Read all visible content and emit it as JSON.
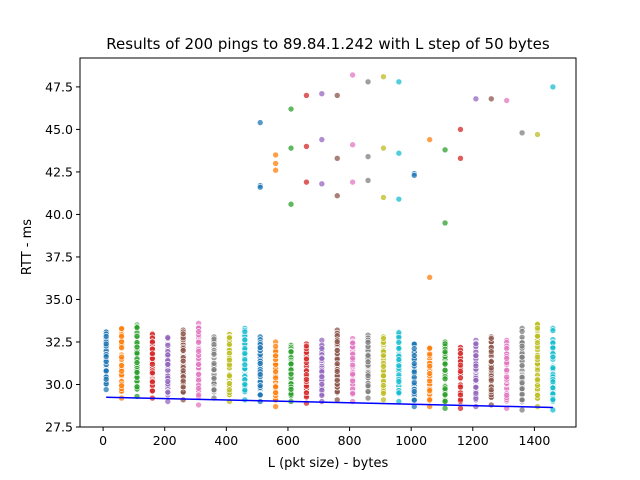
{
  "chart_data": {
    "type": "scatter",
    "title": "Results of 200 pings to 89.84.1.242 with L step of 50 bytes",
    "xlabel": "L (pkt size) - bytes",
    "ylabel": "RTT - ms",
    "xlim": [
      -75,
      1535
    ],
    "ylim": [
      27.5,
      49.2
    ],
    "xticks": [
      0,
      200,
      400,
      600,
      800,
      1000,
      1200,
      1400
    ],
    "yticks": [
      27.5,
      30.0,
      32.5,
      35.0,
      37.5,
      40.0,
      42.5,
      45.0,
      47.5
    ],
    "ytick_labels": [
      "27.5",
      "30.0",
      "32.5",
      "35.0",
      "37.5",
      "40.0",
      "42.5",
      "45.0",
      "47.5"
    ],
    "grid": false,
    "legend": "none",
    "palette": [
      "#1f77b4",
      "#ff7f0e",
      "#2ca02c",
      "#d62728",
      "#9467bd",
      "#8c564b",
      "#e377c2",
      "#7f7f7f",
      "#bcbd22",
      "#17becf"
    ],
    "fit_line": {
      "color": "#0000ff",
      "x": [
        10,
        1460
      ],
      "y": [
        29.25,
        28.65
      ]
    },
    "series": [
      {
        "x": 10,
        "main": [
          29.7,
          33.1
        ],
        "outliers": []
      },
      {
        "x": 60,
        "main": [
          29.2,
          33.3
        ],
        "outliers": []
      },
      {
        "x": 110,
        "main": [
          29.3,
          33.5
        ],
        "outliers": []
      },
      {
        "x": 160,
        "main": [
          29.2,
          33.0
        ],
        "outliers": []
      },
      {
        "x": 210,
        "main": [
          29.0,
          32.8
        ],
        "outliers": []
      },
      {
        "x": 260,
        "main": [
          29.1,
          33.2
        ],
        "outliers": []
      },
      {
        "x": 310,
        "main": [
          28.8,
          33.6
        ],
        "outliers": []
      },
      {
        "x": 360,
        "main": [
          29.2,
          32.8
        ],
        "outliers": []
      },
      {
        "x": 410,
        "main": [
          29.0,
          33.0
        ],
        "outliers": []
      },
      {
        "x": 460,
        "main": [
          29.1,
          33.3
        ],
        "outliers": []
      },
      {
        "x": 510,
        "main": [
          29.0,
          32.8
        ],
        "outliers": [
          45.4,
          41.7,
          41.6
        ]
      },
      {
        "x": 560,
        "main": [
          28.7,
          32.5
        ],
        "outliers": [
          43.5,
          43.0,
          42.6
        ]
      },
      {
        "x": 610,
        "main": [
          29.0,
          32.3
        ],
        "outliers": [
          46.2,
          43.9,
          40.6
        ]
      },
      {
        "x": 660,
        "main": [
          28.9,
          32.4
        ],
        "outliers": [
          47.0,
          44.0,
          41.9
        ]
      },
      {
        "x": 710,
        "main": [
          29.0,
          32.6
        ],
        "outliers": [
          47.1,
          44.4,
          41.8
        ]
      },
      {
        "x": 760,
        "main": [
          29.1,
          33.2
        ],
        "outliers": [
          47.0,
          43.3,
          41.1
        ]
      },
      {
        "x": 810,
        "main": [
          29.0,
          32.7
        ],
        "outliers": [
          48.2,
          44.1,
          41.9
        ]
      },
      {
        "x": 860,
        "main": [
          29.2,
          32.9
        ],
        "outliers": [
          47.8,
          43.4,
          42.0
        ]
      },
      {
        "x": 910,
        "main": [
          29.1,
          32.8
        ],
        "outliers": [
          48.1,
          43.9,
          41.0
        ]
      },
      {
        "x": 960,
        "main": [
          29.0,
          33.1
        ],
        "outliers": [
          47.8,
          43.6,
          40.9
        ]
      },
      {
        "x": 1010,
        "main": [
          28.7,
          32.4
        ],
        "outliers": [
          42.4,
          42.3
        ]
      },
      {
        "x": 1060,
        "main": [
          28.7,
          32.2
        ],
        "outliers": [
          44.4,
          36.3
        ]
      },
      {
        "x": 1110,
        "main": [
          28.6,
          32.5
        ],
        "outliers": [
          43.8,
          39.5
        ]
      },
      {
        "x": 1160,
        "main": [
          28.6,
          32.2
        ],
        "outliers": [
          45.0,
          43.3
        ]
      },
      {
        "x": 1210,
        "main": [
          28.7,
          32.6
        ],
        "outliers": [
          46.8
        ]
      },
      {
        "x": 1260,
        "main": [
          28.8,
          32.8
        ],
        "outliers": [
          46.8
        ]
      },
      {
        "x": 1310,
        "main": [
          28.6,
          32.6
        ],
        "outliers": [
          46.7
        ]
      },
      {
        "x": 1360,
        "main": [
          28.5,
          33.3
        ],
        "outliers": [
          44.8
        ]
      },
      {
        "x": 1410,
        "main": [
          28.7,
          33.6
        ],
        "outliers": [
          44.7
        ]
      },
      {
        "x": 1460,
        "main": [
          28.5,
          33.3
        ],
        "outliers": [
          47.5
        ]
      }
    ]
  }
}
